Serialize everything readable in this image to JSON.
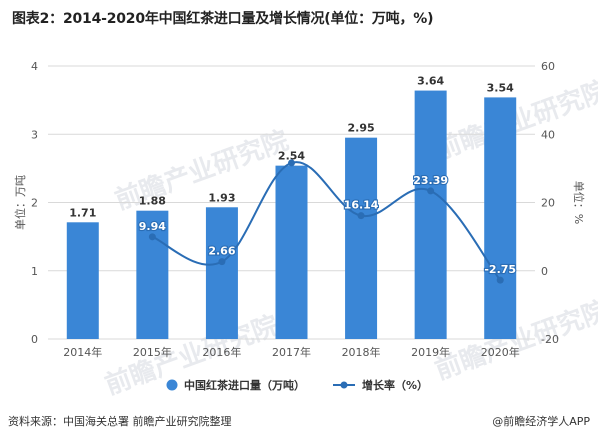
{
  "title": "图表2：2014-2020年中国红茶进口量及增长情况(单位：万吨，%)",
  "source": "资料来源：中国海关总署 前瞻产业研究院整理",
  "brand": "@前瞻经济学人APP",
  "watermark": "前瞻产业研究院",
  "colors": {
    "bar": "#3a86d6",
    "line": "#2a6db5",
    "grid": "#d9d9d9",
    "axisText": "#555555"
  },
  "chart_data": {
    "type": "bar",
    "categories": [
      "2014年",
      "2015年",
      "2016年",
      "2017年",
      "2018年",
      "2019年",
      "2020年"
    ],
    "series": [
      {
        "name": "中国红茶进口量（万吨）",
        "type": "bar",
        "axis": "left",
        "values": [
          1.71,
          1.88,
          1.93,
          2.54,
          2.95,
          3.64,
          3.54
        ]
      },
      {
        "name": "增长率（%）",
        "type": "line",
        "axis": "right",
        "values": [
          null,
          9.94,
          2.66,
          31.6,
          16.14,
          23.39,
          -2.75
        ],
        "labels": [
          "",
          "9.94",
          "2.66",
          "",
          "16.14",
          "23.39",
          "-2.75"
        ]
      }
    ],
    "ylabel": "单位：万吨",
    "y2label": "单位：%",
    "ylim": [
      0,
      4
    ],
    "yticks": [
      "0",
      "1",
      "2",
      "3",
      "4"
    ],
    "y2lim": [
      -20,
      60
    ],
    "y2ticks": [
      "-20",
      "0",
      "20",
      "40",
      "60"
    ],
    "grid": true,
    "legend": "bottom"
  }
}
